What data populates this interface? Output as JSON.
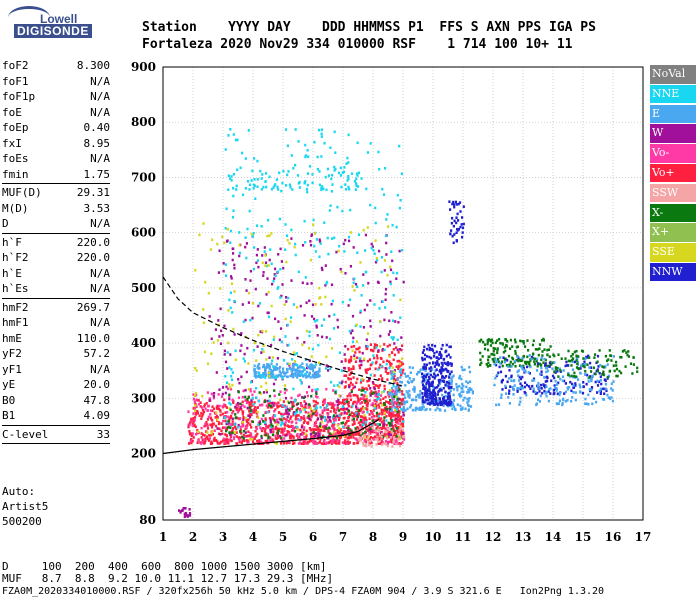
{
  "logo": {
    "line1": "Lowell",
    "line2": "DIGISONDE"
  },
  "header": {
    "labels": "Station    YYYY DAY    DDD HHMMSS P1  FFS S AXN PPS IGA PS",
    "values": "Fortaleza 2020 Nov29 334 010000 RSF    1 714 100 10+ 11"
  },
  "params": [
    {
      "k": "foF2",
      "v": "8.300"
    },
    {
      "k": "foF1",
      "v": "N/A"
    },
    {
      "k": "foF1p",
      "v": "N/A"
    },
    {
      "k": "foE",
      "v": "N/A"
    },
    {
      "k": "foEp",
      "v": "0.40"
    },
    {
      "k": "fxI",
      "v": "8.95"
    },
    {
      "k": "foEs",
      "v": "N/A"
    },
    {
      "k": "fmin",
      "v": "1.75"
    },
    {
      "sep": true
    },
    {
      "k": "MUF(D)",
      "v": "29.31"
    },
    {
      "k": "M(D)",
      "v": "3.53"
    },
    {
      "k": "D",
      "v": "N/A"
    },
    {
      "sep": true
    },
    {
      "k": "h`F",
      "v": "220.0"
    },
    {
      "k": "h`F2",
      "v": "220.0"
    },
    {
      "k": "h`E",
      "v": "N/A"
    },
    {
      "k": "h`Es",
      "v": "N/A"
    },
    {
      "sep": true
    },
    {
      "k": "hmF2",
      "v": "269.7"
    },
    {
      "k": "hmF1",
      "v": "N/A"
    },
    {
      "k": "hmE",
      "v": "110.0"
    },
    {
      "k": "yF2",
      "v": "57.2"
    },
    {
      "k": "yF1",
      "v": "N/A"
    },
    {
      "k": "yE",
      "v": "20.0"
    },
    {
      "k": "B0",
      "v": "47.8"
    },
    {
      "k": "B1",
      "v": "4.09"
    },
    {
      "sep": true
    },
    {
      "k": "C-level",
      "v": "33"
    },
    {
      "sep": true
    }
  ],
  "auto": {
    "line1": "Auto:",
    "line2": "Artist5",
    "line3": "500200"
  },
  "legend": [
    {
      "label": "NoVal",
      "color": "#808080"
    },
    {
      "label": "NNE",
      "color": "#19d7f0"
    },
    {
      "label": "E",
      "color": "#4aa8f0"
    },
    {
      "label": "W",
      "color": "#a0109a"
    },
    {
      "label": "Vo-",
      "color": "#ff3aa6"
    },
    {
      "label": "Vo+",
      "color": "#ff2040"
    },
    {
      "label": "SSW",
      "color": "#f5a5a5"
    },
    {
      "label": "X-",
      "color": "#0a7a10"
    },
    {
      "label": "X+",
      "color": "#8fc050"
    },
    {
      "label": "SSE",
      "color": "#d7d720"
    },
    {
      "label": "NNW",
      "color": "#2020d0"
    }
  ],
  "footer": {
    "line1": "D     100  200  400  600  800 1000 1500 3000 [km]",
    "line2": "MUF   8.7  8.8  9.2 10.0 11.1 12.7 17.3 29.3 [MHz]",
    "line3": "FZA0M_2020334010000.RSF / 320fx256h 50 kHz 5.0 km / DPS-4 FZA0M 904 / 3.9 S 321.6 E   Ion2Png 1.3.20"
  },
  "chart_data": {
    "type": "scatter",
    "xlim": [
      1,
      17
    ],
    "ylim": [
      80,
      900
    ],
    "x_ticks": [
      "1",
      "2",
      "3",
      "4",
      "5",
      "6",
      "7",
      "8",
      "9",
      "10",
      "11",
      "12",
      "13",
      "14",
      "15",
      "16",
      "17"
    ],
    "y_ticks": [
      "80",
      "200",
      "300",
      "400",
      "500",
      "600",
      "700",
      "800",
      "900"
    ],
    "grid": true,
    "trace_curve": [
      [
        1.0,
        200
      ],
      [
        2.0,
        207
      ],
      [
        3.0,
        212
      ],
      [
        4.0,
        217
      ],
      [
        5.0,
        222
      ],
      [
        6.0,
        227
      ],
      [
        7.0,
        233
      ],
      [
        7.5,
        240
      ],
      [
        8.0,
        255
      ],
      [
        8.2,
        262
      ]
    ],
    "dashed_curve": [
      [
        1.0,
        520
      ],
      [
        1.5,
        480
      ],
      [
        2.0,
        455
      ],
      [
        3.0,
        428
      ],
      [
        4.0,
        405
      ],
      [
        5.0,
        385
      ],
      [
        6.0,
        367
      ],
      [
        7.0,
        350
      ],
      [
        8.0,
        335
      ],
      [
        9.0,
        322
      ]
    ],
    "clusters": [
      {
        "dir": "Vo+",
        "x": [
          1.8,
          9.0
        ],
        "y": [
          220,
          300
        ],
        "n": 900
      },
      {
        "dir": "Vo+",
        "x": [
          7.0,
          9.0
        ],
        "y": [
          230,
          400
        ],
        "n": 350
      },
      {
        "dir": "Vo-",
        "x": [
          1.8,
          9.0
        ],
        "y": [
          220,
          320
        ],
        "n": 300
      },
      {
        "dir": "W",
        "x": [
          2.5,
          9.0
        ],
        "y": [
          230,
          600
        ],
        "n": 350
      },
      {
        "dir": "E",
        "x": [
          4.0,
          6.2
        ],
        "y": [
          340,
          365
        ],
        "n": 200
      },
      {
        "dir": "E",
        "x": [
          8.5,
          11.3
        ],
        "y": [
          280,
          360
        ],
        "n": 250
      },
      {
        "dir": "NNE",
        "x": [
          3.0,
          9.0
        ],
        "y": [
          250,
          790
        ],
        "n": 350
      },
      {
        "dir": "SSE",
        "x": [
          2.0,
          9.0
        ],
        "y": [
          220,
          620
        ],
        "n": 180
      },
      {
        "dir": "X-",
        "x": [
          3.0,
          9.0
        ],
        "y": [
          230,
          320
        ],
        "n": 120
      },
      {
        "dir": "X-",
        "x": [
          11.5,
          14.0
        ],
        "y": [
          360,
          410
        ],
        "n": 160
      },
      {
        "dir": "NNW",
        "x": [
          9.6,
          10.6
        ],
        "y": [
          290,
          400
        ],
        "n": 260
      },
      {
        "dir": "NNW",
        "x": [
          12.0,
          15.8
        ],
        "y": [
          310,
          380
        ],
        "n": 150
      },
      {
        "dir": "E",
        "x": [
          12.0,
          16.0
        ],
        "y": [
          290,
          380
        ],
        "n": 180
      },
      {
        "dir": "X-",
        "x": [
          14.0,
          16.8
        ],
        "y": [
          340,
          390
        ],
        "n": 90
      },
      {
        "dir": "NNE",
        "x": [
          3.0,
          7.5
        ],
        "y": [
          680,
          720
        ],
        "n": 90
      },
      {
        "dir": "SSW",
        "x": [
          7.5,
          9.0
        ],
        "y": [
          215,
          250
        ],
        "n": 60
      },
      {
        "dir": "NNW",
        "x": [
          10.5,
          11.0
        ],
        "y": [
          580,
          660
        ],
        "n": 40
      },
      {
        "dir": "W",
        "x": [
          1.5,
          1.9
        ],
        "y": [
          88,
          105
        ],
        "n": 20
      }
    ]
  }
}
